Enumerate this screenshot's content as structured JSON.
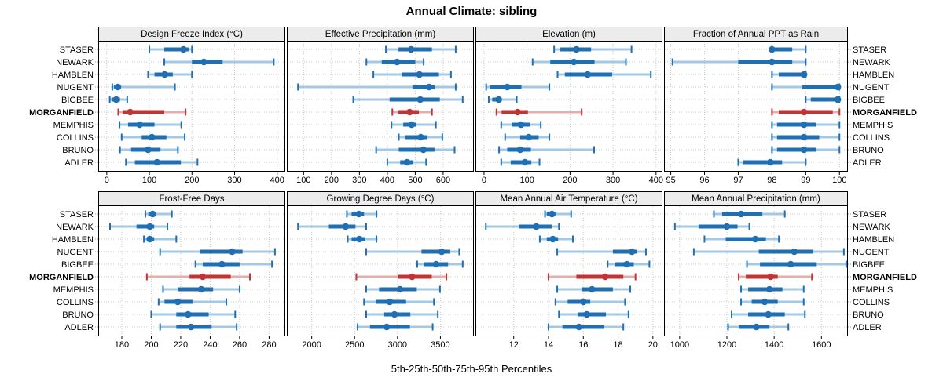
{
  "title": "Annual Climate: sibling",
  "caption": "5th-25th-50th-75th-95th Percentiles",
  "stations": [
    "STASER",
    "NEWARK",
    "HAMBLEN",
    "NUGENT",
    "BIGBEE",
    "MORGANFIELD",
    "MEMPHIS",
    "COLLINS",
    "BRUNO",
    "ADLER"
  ],
  "highlight_station": "MORGANFIELD",
  "colors": {
    "normal": "#1f6fb2",
    "normal_light": "#a3c9e4",
    "highlight": "#bf3535",
    "highlight_light": "#e5aeac",
    "strip_bg": "#ececec",
    "panel_border": "#000000",
    "grid": "#c8c8c8",
    "tick_stub": "#9a9a9a",
    "text": "#000000"
  },
  "chart_data": {
    "type": "dotplot-intervals",
    "percentile_levels": [
      5,
      25,
      50,
      75,
      95
    ],
    "grid": "dotted",
    "legend_position": "none",
    "panels": [
      {
        "title": "Design Freeze Index (°C)",
        "row": 0,
        "col": 0,
        "xlim": [
          -20,
          419
        ],
        "ticks": [
          0,
          100,
          200,
          300,
          400
        ],
        "values": [
          [
            100,
            135,
            180,
            192,
            200
          ],
          [
            135,
            200,
            228,
            272,
            392
          ],
          [
            97,
            112,
            136,
            155,
            200
          ],
          [
            13,
            17,
            26,
            33,
            160
          ],
          [
            7,
            11,
            22,
            31,
            48
          ],
          [
            27,
            37,
            55,
            135,
            185
          ],
          [
            30,
            50,
            77,
            112,
            175
          ],
          [
            35,
            82,
            106,
            140,
            183
          ],
          [
            31,
            57,
            97,
            126,
            167
          ],
          [
            45,
            66,
            118,
            174,
            213
          ]
        ]
      },
      {
        "title": "Effective Precipitation (mm)",
        "row": 0,
        "col": 1,
        "xlim": [
          40,
          710
        ],
        "ticks": [
          100,
          200,
          300,
          400,
          500,
          600
        ],
        "values": [
          [
            395,
            440,
            485,
            560,
            645
          ],
          [
            325,
            380,
            435,
            500,
            530
          ],
          [
            350,
            452,
            515,
            585,
            628
          ],
          [
            80,
            490,
            550,
            570,
            645
          ],
          [
            278,
            408,
            518,
            588,
            670
          ],
          [
            418,
            440,
            480,
            513,
            560
          ],
          [
            415,
            457,
            487,
            504,
            574
          ],
          [
            441,
            464,
            520,
            544,
            597
          ],
          [
            360,
            441,
            529,
            569,
            641
          ],
          [
            400,
            446,
            471,
            493,
            539
          ]
        ]
      },
      {
        "title": "Elevation (m)",
        "row": 0,
        "col": 2,
        "xlim": [
          -20,
          415
        ],
        "ticks": [
          0,
          100,
          200,
          300,
          400
        ],
        "values": [
          [
            163,
            177,
            215,
            249,
            343
          ],
          [
            113,
            154,
            209,
            257,
            330
          ],
          [
            171,
            188,
            241,
            298,
            388
          ],
          [
            5,
            14,
            54,
            87,
            152
          ],
          [
            11,
            19,
            34,
            41,
            76
          ],
          [
            29,
            41,
            78,
            102,
            227
          ],
          [
            40,
            65,
            86,
            107,
            132
          ],
          [
            49,
            84,
            104,
            127,
            152
          ],
          [
            35,
            54,
            84,
            109,
            256
          ],
          [
            40,
            62,
            95,
            110,
            129
          ]
        ]
      },
      {
        "title": "Fraction of Annual PPT as Rain",
        "row": 0,
        "col": 3,
        "xlim": [
          94.8,
          100.25
        ],
        "ticks": [
          95,
          96,
          97,
          98,
          99,
          100
        ],
        "values": [
          [
            98,
            98,
            98,
            98.6,
            99
          ],
          [
            95.05,
            97,
            98,
            98.6,
            99
          ],
          [
            98,
            98.2,
            98.95,
            99,
            99
          ],
          [
            98,
            98.9,
            99.95,
            100,
            100
          ],
          [
            99,
            99.15,
            99.95,
            100,
            100
          ],
          [
            98,
            98.2,
            98.95,
            99.8,
            100
          ],
          [
            98,
            98.15,
            98.95,
            99.3,
            100
          ],
          [
            98,
            98.15,
            98.95,
            99.4,
            100
          ],
          [
            98,
            98.15,
            98.95,
            99.3,
            100
          ],
          [
            97,
            97.15,
            97.95,
            98.3,
            99
          ]
        ]
      },
      {
        "title": "Frost-Free Days",
        "row": 1,
        "col": 0,
        "xlim": [
          164,
          291
        ],
        "ticks": [
          180,
          200,
          220,
          240,
          260,
          280
        ],
        "values": [
          [
            196,
            198,
            201,
            203,
            214
          ],
          [
            172,
            190,
            199,
            202,
            211
          ],
          [
            195,
            197,
            199,
            202,
            217
          ],
          [
            206,
            233,
            255,
            262,
            284
          ],
          [
            230,
            235,
            248,
            260,
            282
          ],
          [
            197,
            226,
            235,
            254,
            267
          ],
          [
            208,
            218,
            234,
            242,
            260
          ],
          [
            205,
            209,
            218,
            228,
            251
          ],
          [
            200,
            217,
            225,
            239,
            257
          ],
          [
            206,
            217,
            227,
            241,
            258
          ]
        ]
      },
      {
        "title": "Growing Degree Days (°C)",
        "row": 1,
        "col": 1,
        "xlim": [
          1710,
          3890
        ],
        "ticks": [
          2000,
          2500,
          3000,
          3500
        ],
        "values": [
          [
            2410,
            2465,
            2550,
            2610,
            2755
          ],
          [
            1840,
            2200,
            2395,
            2510,
            2635
          ],
          [
            2420,
            2465,
            2555,
            2625,
            2755
          ],
          [
            2635,
            3280,
            3515,
            3615,
            3720
          ],
          [
            3230,
            3310,
            3450,
            3590,
            3760
          ],
          [
            2520,
            3005,
            3170,
            3400,
            3570
          ],
          [
            2635,
            2785,
            3030,
            3225,
            3495
          ],
          [
            2610,
            2745,
            2910,
            3100,
            3425
          ],
          [
            2635,
            2845,
            2965,
            3150,
            3470
          ],
          [
            2535,
            2680,
            2875,
            3145,
            3410
          ]
        ]
      },
      {
        "title": "Mean Annual Air Temperature (°C)",
        "row": 1,
        "col": 2,
        "xlim": [
          9.8,
          20.55
        ],
        "ticks": [
          12,
          14,
          16,
          18,
          20
        ],
        "values": [
          [
            13.8,
            13.9,
            14.2,
            14.4,
            15.3
          ],
          [
            10.4,
            12.3,
            13.3,
            14.2,
            14.6
          ],
          [
            13.5,
            13.9,
            14.25,
            14.55,
            15.4
          ],
          [
            14.5,
            17.7,
            18.8,
            19.1,
            19.6
          ],
          [
            17.4,
            17.8,
            18.5,
            18.9,
            19.8
          ],
          [
            14.0,
            15.6,
            17.25,
            18.3,
            19.0
          ],
          [
            14.5,
            15.9,
            16.5,
            17.7,
            18.7
          ],
          [
            14.4,
            15.1,
            16.0,
            16.4,
            18.4
          ],
          [
            14.6,
            15.7,
            16.2,
            17.3,
            18.6
          ],
          [
            14.0,
            14.8,
            15.75,
            17.2,
            18.3
          ]
        ]
      },
      {
        "title": "Mean Annual Precipitation (mm)",
        "row": 1,
        "col": 3,
        "xlim": [
          934,
          1712
        ],
        "ticks": [
          1000,
          1200,
          1400,
          1600
        ],
        "values": [
          [
            1145,
            1180,
            1260,
            1350,
            1445
          ],
          [
            980,
            1080,
            1200,
            1245,
            1295
          ],
          [
            1105,
            1195,
            1320,
            1365,
            1420
          ],
          [
            1060,
            1335,
            1485,
            1565,
            1695
          ],
          [
            1285,
            1340,
            1470,
            1580,
            1705
          ],
          [
            1250,
            1280,
            1385,
            1415,
            1560
          ],
          [
            1260,
            1290,
            1380,
            1435,
            1525
          ],
          [
            1260,
            1305,
            1360,
            1415,
            1525
          ],
          [
            1220,
            1290,
            1375,
            1445,
            1530
          ],
          [
            1205,
            1250,
            1325,
            1380,
            1460
          ]
        ]
      }
    ]
  }
}
